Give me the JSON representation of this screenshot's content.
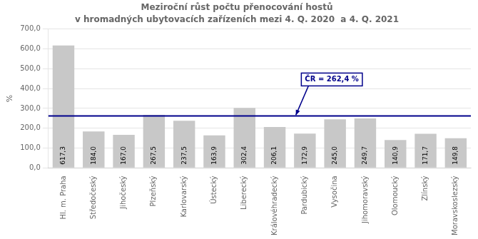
{
  "chart_data": {
    "type": "bar",
    "title": "Meziroční růst počtu přenocování hostů",
    "subtitle": "v hromadných ubytovacích zařízeních mezi 4. Q. 2020  a 4. Q. 2021",
    "ylabel": "%",
    "categories": [
      "Hl. m. Praha",
      "Středočeský",
      "Jihočeský",
      "Plzeňský",
      "Karlovarský",
      "Ústecký",
      "Liberecký",
      "Královéhradecký",
      "Pardubický",
      "Vysočina",
      "Jihomoravský",
      "Olomoucký",
      "Zlínský",
      "Moravskoslezský"
    ],
    "values": [
      617.3,
      184.0,
      167.0,
      267.5,
      237.5,
      163.9,
      302.4,
      206.1,
      172.9,
      245.0,
      249.7,
      140.9,
      171.7,
      149.8
    ],
    "value_labels": [
      "617,3",
      "184,0",
      "167,0",
      "267,5",
      "237,5",
      "163,9",
      "302,4",
      "206,1",
      "172,9",
      "245,0",
      "249,7",
      "140,9",
      "171,7",
      "149,8"
    ],
    "data_labels": true,
    "color": "#c8c8c8",
    "ylim": [
      0,
      700
    ],
    "yticks": [
      {
        "value": 0,
        "label": "0,0"
      },
      {
        "value": 100,
        "label": "100,0"
      },
      {
        "value": 200,
        "label": "200,0"
      },
      {
        "value": 300,
        "label": "300,0"
      },
      {
        "value": 400,
        "label": "400,0"
      },
      {
        "value": 500,
        "label": "500,0"
      },
      {
        "value": 600,
        "label": "600,0"
      },
      {
        "value": 700,
        "label": "700,0"
      }
    ],
    "grid": true,
    "annotations": [
      {
        "type": "hline",
        "y": 262.4,
        "label": "ČR = 262,4 %",
        "color": "#00008B"
      }
    ]
  }
}
